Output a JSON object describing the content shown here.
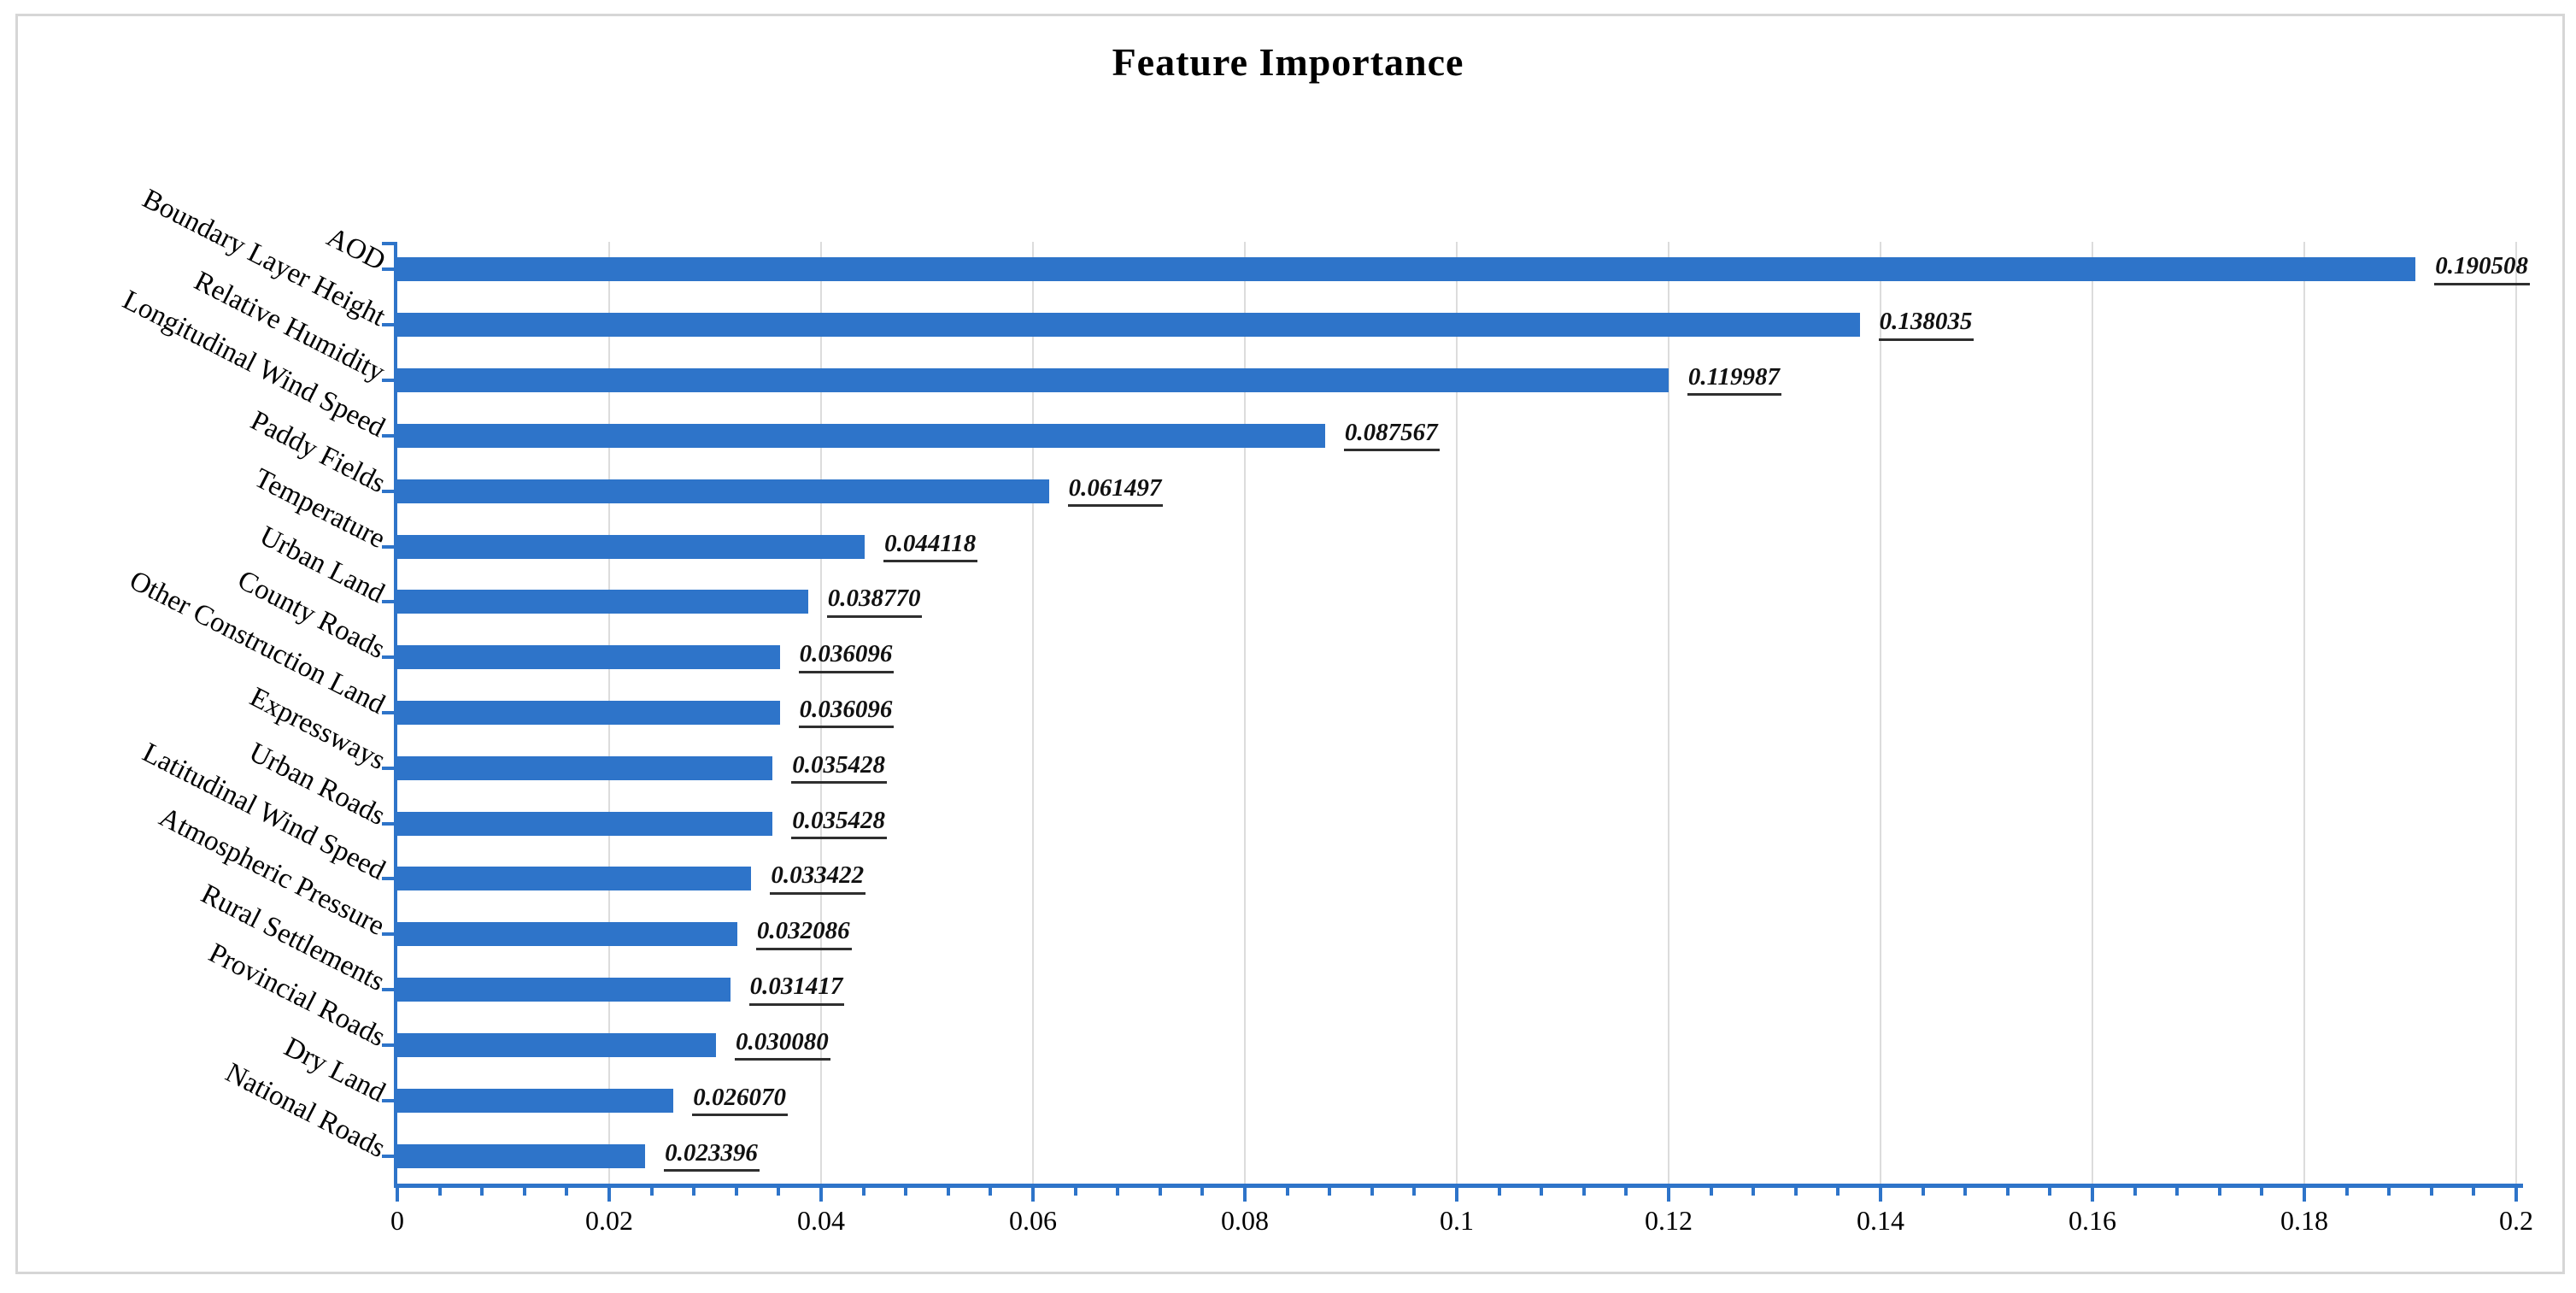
{
  "chart_data": {
    "type": "bar",
    "orientation": "horizontal",
    "title": "Feature Importance",
    "categories": [
      "AOD",
      "Boundary Layer Height",
      "Relative Humidity",
      "Longitudinal Wind Speed",
      "Paddy Fields",
      "Temperature",
      "Urban Land",
      "County Roads",
      "Other Construction Land",
      "Expressways",
      "Urban Roads",
      "Latitudinal Wind Speed",
      "Atmospheric Pressure",
      "Rural Settlements",
      "Provincial Roads",
      "Dry Land",
      "National Roads"
    ],
    "values": [
      0.190508,
      0.138035,
      0.119987,
      0.087567,
      0.061497,
      0.044118,
      0.03877,
      0.036096,
      0.036096,
      0.035428,
      0.035428,
      0.033422,
      0.032086,
      0.031417,
      0.03008,
      0.02607,
      0.023396
    ],
    "value_label_decimals": 6,
    "xlabel": "",
    "ylabel": "",
    "xlim": [
      0,
      0.2
    ],
    "x_major_step": 0.02,
    "x_minor_step": 0.004,
    "x_tick_labels": [
      "0",
      "0.02",
      "0.04",
      "0.06",
      "0.08",
      "0.1",
      "0.12",
      "0.14",
      "0.16",
      "0.18",
      "0.2"
    ],
    "grid": "vertical-major-only",
    "legend": "none",
    "colors": {
      "bar": "#2e74c9",
      "axis": "#2e74c9",
      "gridline": "#dcdcdc",
      "text": "#000000",
      "value_underline": "#2f2f2f",
      "frame_border": "#d6d6d6",
      "background": "#ffffff"
    }
  }
}
